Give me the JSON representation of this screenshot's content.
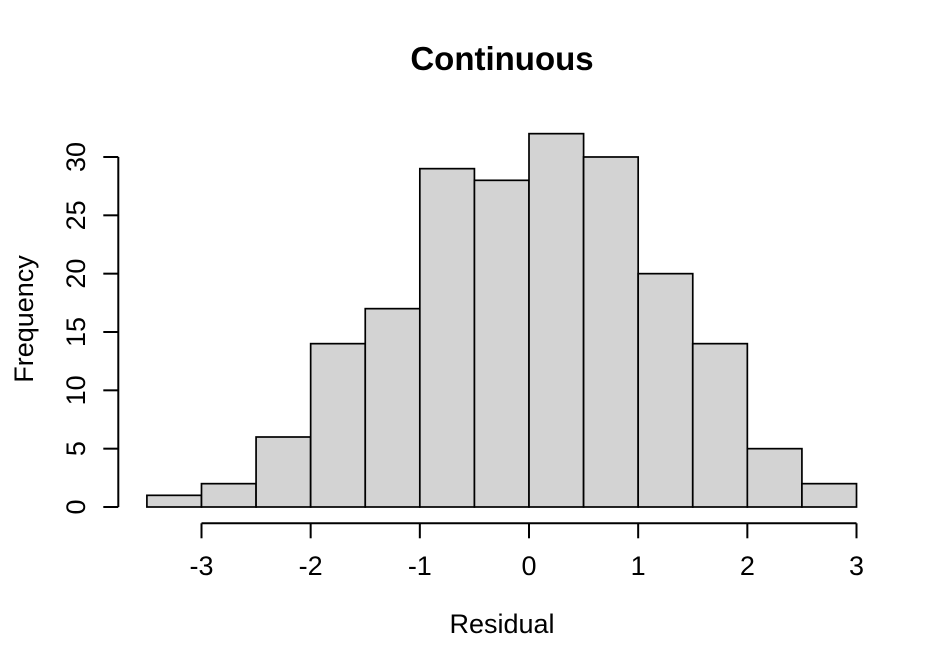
{
  "chart_data": {
    "type": "bar",
    "chart_kind": "histogram",
    "title": "Continuous",
    "xlabel": "Residual",
    "ylabel": "Frequency",
    "bin_start": -3.5,
    "bin_width": 0.5,
    "bin_edges": [
      -3.5,
      -3.0,
      -2.5,
      -2.0,
      -1.5,
      -1.0,
      -0.5,
      0.0,
      0.5,
      1.0,
      1.5,
      2.0,
      2.5,
      3.0
    ],
    "values": [
      1,
      2,
      6,
      14,
      17,
      29,
      28,
      32,
      30,
      20,
      14,
      5,
      2
    ],
    "x_ticks": [
      -3,
      -2,
      -1,
      0,
      1,
      2,
      3
    ],
    "y_ticks": [
      0,
      5,
      10,
      15,
      20,
      25,
      30
    ],
    "xlim": [
      -3.5,
      3.0
    ],
    "ylim": [
      0,
      32
    ],
    "grid": false,
    "legend": "none",
    "bar_fill": "#D3D3D3",
    "bar_stroke": "#000000",
    "axis_color": "#000000",
    "text_color": "#000000",
    "background": "#FFFFFF"
  }
}
